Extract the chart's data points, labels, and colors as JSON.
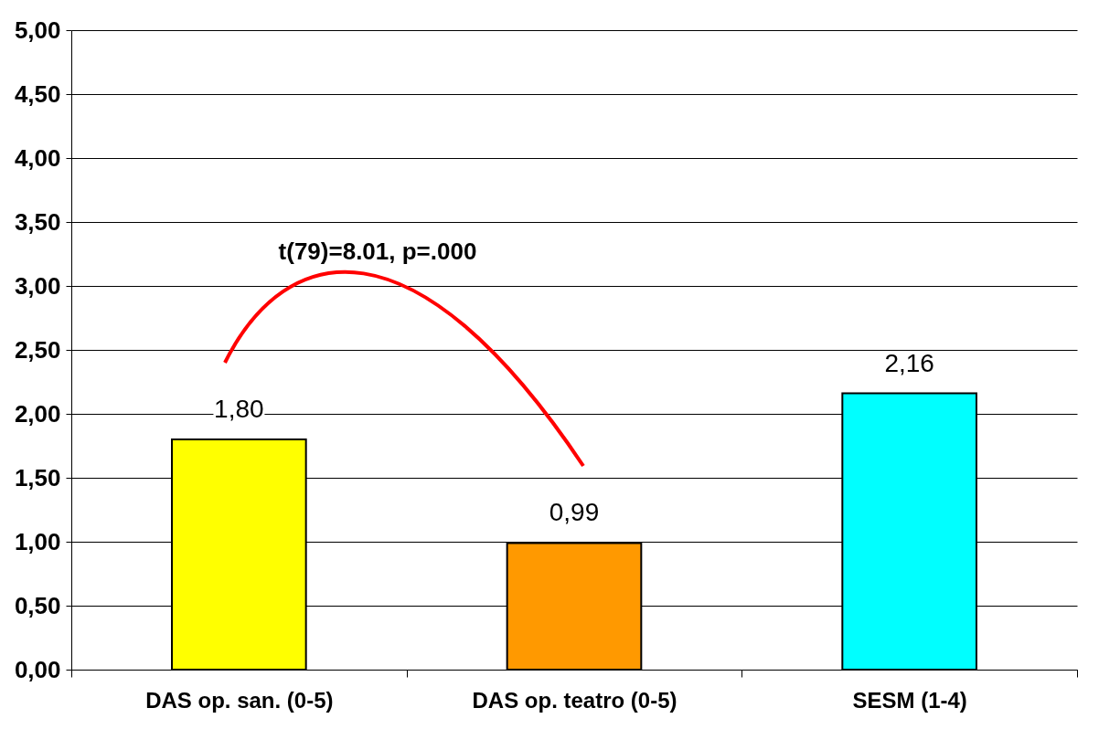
{
  "chart_data": {
    "type": "bar",
    "categories": [
      "DAS op. san. (0-5)",
      "DAS op. teatro (0-5)",
      "SESM (1-4)"
    ],
    "values": [
      1.8,
      0.99,
      2.16
    ],
    "colors": [
      "#ffff00",
      "#ff9900",
      "#00ffff"
    ],
    "value_labels": [
      "1,80",
      "0,99",
      "2,16"
    ],
    "ylim": [
      0,
      5
    ],
    "yticks": [
      {
        "value": 0,
        "label": "0,00"
      },
      {
        "value": 0.5,
        "label": "0,50"
      },
      {
        "value": 1,
        "label": "1,00"
      },
      {
        "value": 1.5,
        "label": "1,50"
      },
      {
        "value": 2,
        "label": "2,00"
      },
      {
        "value": 2.5,
        "label": "2,50"
      },
      {
        "value": 3,
        "label": "3,00"
      },
      {
        "value": 3.5,
        "label": "3,50"
      },
      {
        "value": 4,
        "label": "4,00"
      },
      {
        "value": 4.5,
        "label": "4,50"
      },
      {
        "value": 5,
        "label": "5,00"
      }
    ],
    "grid": "y",
    "annotations": [
      "t(79)=8.01, p=.000"
    ]
  }
}
